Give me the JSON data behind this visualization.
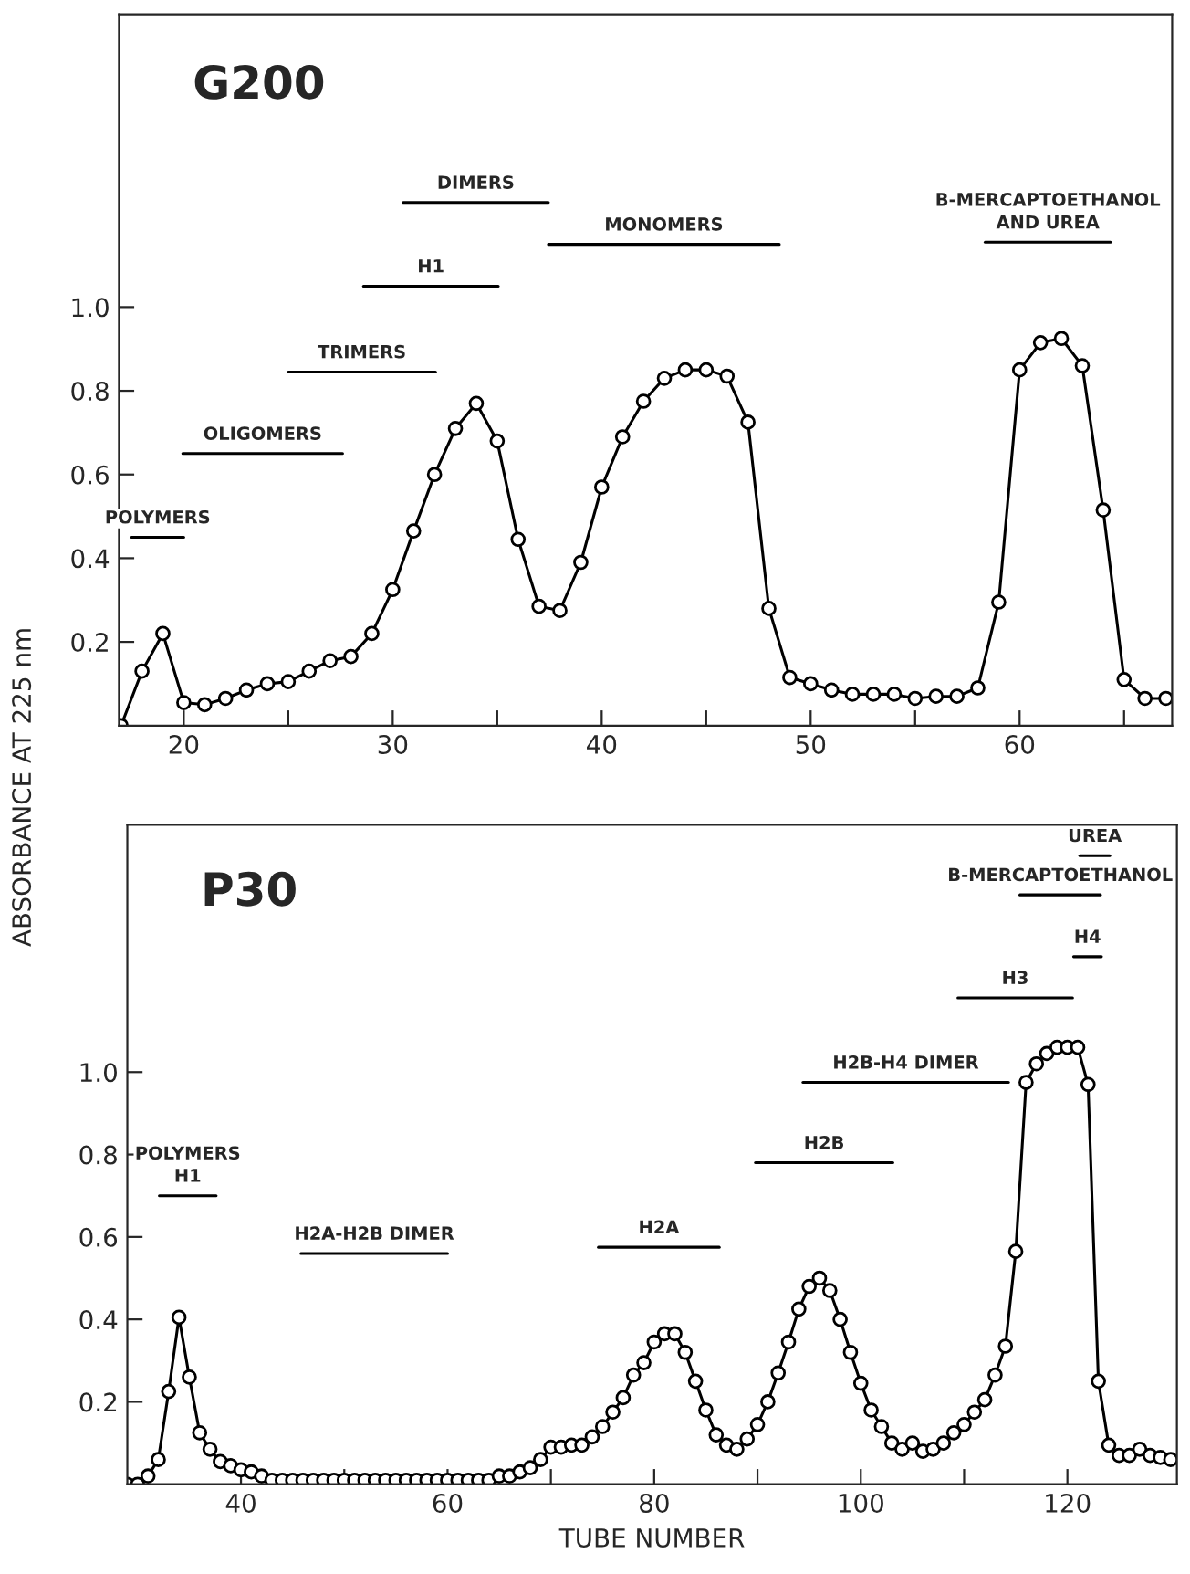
{
  "chart_data": [
    {
      "type": "line",
      "title": "G200",
      "ylabel": "ABSORBANCE AT 225 nm",
      "xlim": [
        16.9,
        67.3
      ],
      "ylim": [
        0,
        1.7
      ],
      "xticks": [
        20,
        {
          "value": 25,
          "label": null
        },
        30,
        {
          "value": 35,
          "label": null
        },
        40,
        {
          "value": 45,
          "label": null
        },
        50,
        {
          "value": 55,
          "label": null
        },
        60,
        {
          "value": 65,
          "label": null
        }
      ],
      "yticks": [
        0.2,
        0.4,
        0.6,
        0.8,
        {
          "value": 1.0,
          "label": "1.0"
        }
      ],
      "grid": false,
      "series": [
        {
          "color": "#000000",
          "marker": "circle",
          "x": [
            17,
            18,
            19,
            20,
            21,
            22,
            23,
            24,
            25,
            26,
            27,
            28,
            29,
            30,
            31,
            32,
            33,
            34,
            35,
            36,
            37,
            38,
            39,
            40,
            41,
            42,
            43,
            44,
            45,
            46,
            47,
            48,
            49,
            50,
            51,
            52,
            53,
            54,
            55,
            56,
            57,
            58,
            59,
            60,
            61,
            62,
            63,
            64,
            65,
            66,
            67
          ],
          "values": [
            0.0,
            0.13,
            0.22,
            0.055,
            0.05,
            0.065,
            0.085,
            0.1,
            0.105,
            0.13,
            0.155,
            0.165,
            0.22,
            0.325,
            0.465,
            0.6,
            0.71,
            0.77,
            0.68,
            0.445,
            0.285,
            0.275,
            0.39,
            0.57,
            0.69,
            0.775,
            0.83,
            0.85,
            0.85,
            0.835,
            0.725,
            0.28,
            0.115,
            0.1,
            0.085,
            0.075,
            0.075,
            0.075,
            0.065,
            0.07,
            0.07,
            0.09,
            0.295,
            0.85,
            0.915,
            0.925,
            0.86,
            0.515,
            0.11,
            0.065,
            0.065
          ]
        },
        {
          "name": "POLYMERS",
          "color": "#000000",
          "x": [
            17.5,
            20.0
          ],
          "values": [
            0.45,
            0.45
          ]
        },
        {
          "name": "OLIGOMERS",
          "color": "#000000",
          "x": [
            19.95,
            27.6
          ],
          "values": [
            0.65,
            0.65
          ]
        },
        {
          "name": "TRIMERS",
          "color": "#000000",
          "x": [
            25.0,
            32.05
          ],
          "values": [
            0.845,
            0.845
          ]
        },
        {
          "name": "H1",
          "color": "#000000",
          "x": [
            28.6,
            35.05
          ],
          "values": [
            1.05,
            1.05
          ]
        },
        {
          "name": "DIMERS",
          "color": "#000000",
          "x": [
            30.5,
            37.45
          ],
          "values": [
            1.25,
            1.25
          ]
        },
        {
          "name": "MONOMERS",
          "color": "#000000",
          "x": [
            37.45,
            48.5
          ],
          "values": [
            1.15,
            1.15
          ]
        },
        {
          "name": "B-MERCAPTOETHANOL\nAND UREA",
          "color": "#000000",
          "x": [
            58.35,
            64.35
          ],
          "values": [
            1.155,
            1.155
          ]
        }
      ]
    },
    {
      "type": "line",
      "title": "P30",
      "xlabel": "TUBE NUMBER",
      "xlim": [
        29,
        130.6
      ],
      "ylim": [
        0,
        1.6
      ],
      "xticks": [
        40,
        {
          "value": 50,
          "label": null
        },
        60,
        {
          "value": 70,
          "label": null
        },
        80,
        {
          "value": 90,
          "label": null
        },
        100,
        {
          "value": 110,
          "label": null
        },
        120
      ],
      "yticks": [
        0.2,
        0.4,
        0.6,
        0.8,
        {
          "value": 1.0,
          "label": "1.0"
        }
      ],
      "grid": false,
      "series": [
        {
          "color": "#000000",
          "marker": "circle",
          "x": [
            29,
            30,
            31,
            32,
            33,
            34,
            35,
            36,
            37,
            38,
            39,
            40,
            41,
            42,
            43,
            44,
            45,
            46,
            47,
            48,
            49,
            50,
            51,
            52,
            53,
            54,
            55,
            56,
            57,
            58,
            59,
            60,
            61,
            62,
            63,
            64,
            65,
            66,
            67,
            68,
            69,
            70,
            71,
            72,
            73,
            74,
            75,
            76,
            77,
            78,
            79,
            80,
            81,
            82,
            83,
            84,
            85,
            86,
            87,
            88,
            89,
            90,
            91,
            92,
            93,
            94,
            95,
            96,
            97,
            98,
            99,
            100,
            101,
            102,
            103,
            104,
            105,
            106,
            107,
            108,
            109,
            110,
            111,
            112,
            113,
            114,
            115,
            116,
            117,
            118,
            119,
            120,
            121,
            122,
            123,
            124,
            125,
            126,
            127,
            128,
            129,
            130
          ],
          "values": [
            0.0,
            0.0,
            0.02,
            0.06,
            0.225,
            0.405,
            0.26,
            0.125,
            0.085,
            0.055,
            0.045,
            0.035,
            0.03,
            0.02,
            0.01,
            0.01,
            0.01,
            0.01,
            0.01,
            0.01,
            0.01,
            0.01,
            0.01,
            0.01,
            0.01,
            0.01,
            0.01,
            0.01,
            0.01,
            0.01,
            0.01,
            0.01,
            0.01,
            0.01,
            0.01,
            0.01,
            0.02,
            0.02,
            0.03,
            0.04,
            0.06,
            0.09,
            0.09,
            0.095,
            0.095,
            0.115,
            0.14,
            0.175,
            0.21,
            0.265,
            0.295,
            0.345,
            0.365,
            0.365,
            0.32,
            0.25,
            0.18,
            0.12,
            0.095,
            0.085,
            0.11,
            0.145,
            0.2,
            0.27,
            0.345,
            0.425,
            0.48,
            0.5,
            0.47,
            0.4,
            0.32,
            0.245,
            0.18,
            0.14,
            0.1,
            0.085,
            0.1,
            0.08,
            0.085,
            0.1,
            0.125,
            0.145,
            0.175,
            0.205,
            0.265,
            0.335,
            0.565,
            0.975,
            1.02,
            1.045,
            1.06,
            1.06,
            1.06,
            0.97,
            0.25,
            0.095,
            0.07,
            0.07,
            0.085,
            0.07,
            0.065,
            0.06
          ]
        },
        {
          "name": "POLYMERS\nH1",
          "color": "#000000",
          "x": [
            32.1,
            37.6
          ],
          "values": [
            0.7,
            0.7
          ]
        },
        {
          "name": "H2A-H2B DIMER",
          "color": "#000000",
          "x": [
            45.8,
            60.0
          ],
          "values": [
            0.56,
            0.56
          ]
        },
        {
          "name": "H2A",
          "color": "#000000",
          "x": [
            74.6,
            86.3
          ],
          "values": [
            0.575,
            0.575
          ]
        },
        {
          "name": "H2B",
          "color": "#000000",
          "x": [
            89.8,
            103.1
          ],
          "values": [
            0.78,
            0.78
          ]
        },
        {
          "name": "H2B-H4 DIMER",
          "color": "#000000",
          "x": [
            94.4,
            114.3
          ],
          "values": [
            0.975,
            0.975
          ]
        },
        {
          "name": "H3",
          "color": "#000000",
          "x": [
            109.4,
            120.5
          ],
          "values": [
            1.18,
            1.18
          ]
        },
        {
          "name": "H4",
          "color": "#000000",
          "x": [
            120.6,
            123.3
          ],
          "values": [
            1.28,
            1.28
          ]
        },
        {
          "name": "B-MERCAPTOETHANOL",
          "color": "#000000",
          "x": [
            115.4,
            123.2
          ],
          "values": [
            1.43,
            1.43
          ]
        },
        {
          "name": "UREA",
          "color": "#000000",
          "x": [
            121.2,
            124.1
          ],
          "values": [
            1.525,
            1.525
          ]
        }
      ]
    }
  ]
}
